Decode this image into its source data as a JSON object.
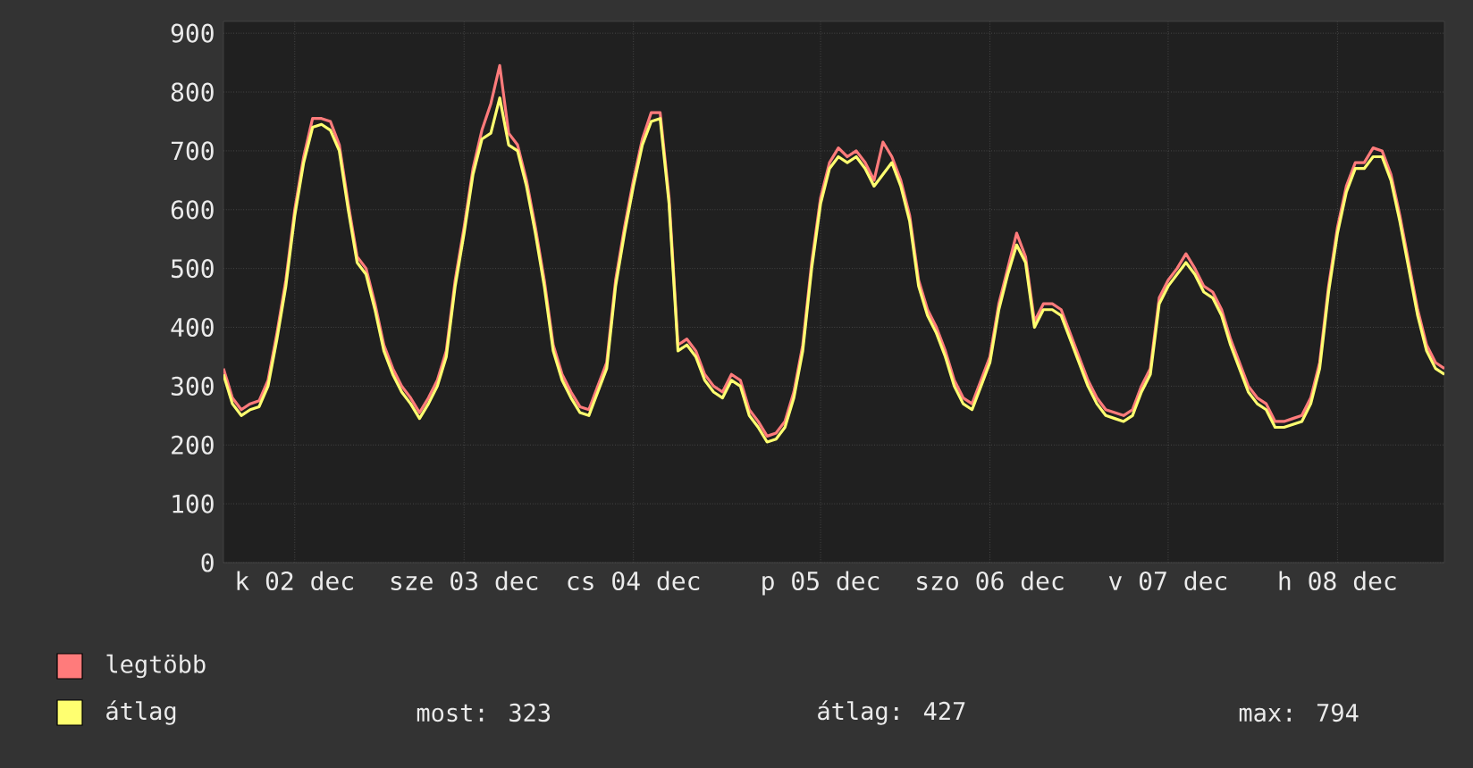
{
  "chart_data": {
    "type": "line",
    "categories": [
      null,
      null,
      null,
      null,
      null,
      null,
      null,
      null,
      "k 02 dec",
      null,
      null,
      null,
      null,
      null,
      null,
      null,
      null,
      null,
      null,
      null,
      null,
      null,
      null,
      null,
      null,
      null,
      null,
      "sze 03 dec",
      null,
      null,
      null,
      null,
      null,
      null,
      null,
      null,
      null,
      null,
      null,
      null,
      null,
      null,
      null,
      null,
      null,
      null,
      "cs 04 dec",
      null,
      null,
      null,
      null,
      null,
      null,
      null,
      null,
      null,
      null,
      null,
      null,
      null,
      null,
      null,
      null,
      null,
      null,
      null,
      null,
      "p 05 dec",
      null,
      null,
      null,
      null,
      null,
      null,
      null,
      null,
      null,
      null,
      null,
      null,
      null,
      null,
      null,
      null,
      null,
      null,
      "szo 06 dec",
      null,
      null,
      null,
      null,
      null,
      null,
      null,
      null,
      null,
      null,
      null,
      null,
      null,
      null,
      null,
      null,
      null,
      null,
      null,
      "v 07 dec",
      null,
      null,
      null,
      null,
      null,
      null,
      null,
      null,
      null,
      null,
      null,
      null,
      null,
      null,
      null,
      null,
      null,
      null,
      "h 08 dec",
      null,
      null,
      null,
      null,
      null,
      null,
      null,
      null,
      null,
      null,
      null,
      null
    ],
    "series": [
      {
        "name": "legtöbb",
        "color": "#ff7b7b",
        "values": [
          330,
          280,
          260,
          270,
          275,
          310,
          390,
          480,
          600,
          690,
          755,
          755,
          750,
          710,
          610,
          520,
          500,
          440,
          370,
          330,
          300,
          280,
          255,
          280,
          310,
          360,
          480,
          570,
          670,
          735,
          780,
          845,
          730,
          710,
          650,
          570,
          480,
          370,
          320,
          290,
          265,
          260,
          300,
          340,
          480,
          570,
          650,
          720,
          765,
          765,
          620,
          370,
          380,
          360,
          320,
          300,
          290,
          320,
          310,
          260,
          240,
          215,
          220,
          240,
          290,
          370,
          510,
          620,
          680,
          705,
          690,
          700,
          680,
          650,
          715,
          690,
          650,
          590,
          480,
          430,
          400,
          360,
          310,
          280,
          270,
          310,
          350,
          440,
          500,
          560,
          520,
          410,
          440,
          440,
          430,
          390,
          350,
          310,
          280,
          260,
          255,
          250,
          260,
          300,
          330,
          450,
          480,
          500,
          525,
          500,
          470,
          460,
          430,
          380,
          340,
          300,
          280,
          270,
          240,
          240,
          245,
          250,
          280,
          340,
          470,
          570,
          640,
          680,
          680,
          705,
          700,
          660,
          590,
          510,
          430,
          370,
          340,
          330
        ]
      },
      {
        "name": "átlag",
        "color": "#ffff70",
        "values": [
          320,
          270,
          250,
          260,
          265,
          300,
          380,
          470,
          590,
          680,
          740,
          745,
          735,
          700,
          600,
          510,
          490,
          430,
          360,
          320,
          290,
          270,
          245,
          270,
          300,
          350,
          470,
          560,
          660,
          720,
          730,
          790,
          710,
          700,
          640,
          560,
          470,
          360,
          310,
          280,
          255,
          250,
          290,
          330,
          470,
          560,
          640,
          710,
          750,
          755,
          610,
          360,
          370,
          350,
          310,
          290,
          280,
          310,
          300,
          250,
          230,
          205,
          210,
          230,
          280,
          360,
          500,
          610,
          670,
          690,
          680,
          690,
          670,
          640,
          660,
          680,
          640,
          580,
          470,
          420,
          390,
          350,
          300,
          270,
          260,
          300,
          340,
          430,
          490,
          540,
          510,
          400,
          430,
          430,
          420,
          380,
          340,
          300,
          270,
          250,
          245,
          240,
          250,
          290,
          320,
          440,
          470,
          490,
          510,
          490,
          460,
          450,
          420,
          370,
          330,
          290,
          270,
          260,
          230,
          230,
          235,
          240,
          270,
          330,
          460,
          560,
          630,
          670,
          670,
          690,
          690,
          650,
          580,
          500,
          420,
          360,
          330,
          320
        ]
      }
    ],
    "ylim": [
      0,
      920
    ],
    "yticks": [
      0,
      100,
      200,
      300,
      400,
      500,
      600,
      700,
      800,
      900
    ],
    "grid": true,
    "legend": "bottom",
    "marker": "none",
    "line_style": "solid",
    "annotations": [
      "most: 323",
      "átlag: 427",
      "max: 794"
    ]
  }
}
